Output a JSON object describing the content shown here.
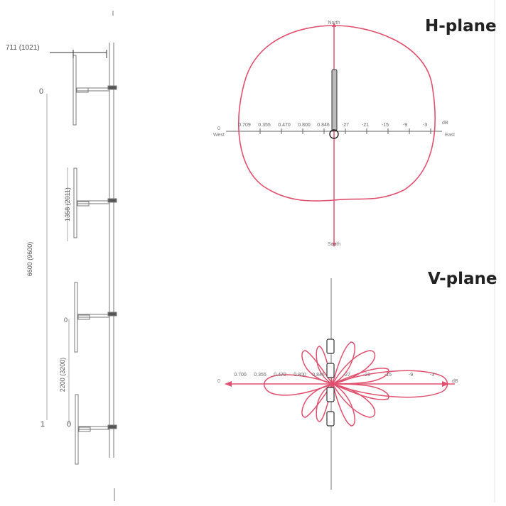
{
  "h_plane": {
    "title": "H-plane",
    "compass": {
      "north": "North",
      "south": "South",
      "east": "East",
      "west": "West"
    },
    "scale_left": [
      "0.709",
      "0.355",
      "0.470",
      "0.800",
      "0.846"
    ],
    "scale_right": [
      "-27",
      "-21",
      "-15",
      "-9",
      "-3"
    ],
    "end_left": "0",
    "end_right": "dB"
  },
  "v_plane": {
    "title": "V-plane",
    "scale_left": [
      "0.700",
      "0.355",
      "0.470",
      "0.800",
      "0.846"
    ],
    "scale_right": [
      "-27",
      "-21",
      "-15",
      "-9",
      "-3"
    ],
    "end_left": "0",
    "end_right": "dB"
  },
  "dimensions": {
    "top_width": "711 (1021)",
    "element_spacing": "1358 (2011)",
    "total_height": "6600 (9600)",
    "lower_spacing": "2200 (3200)",
    "marker_top": "0",
    "marker_mid": "0",
    "marker_bottom_a": "1",
    "marker_bottom_b": "0"
  },
  "colors": {
    "pattern": "#e0506e",
    "line": "#666666",
    "text": "#222222"
  }
}
